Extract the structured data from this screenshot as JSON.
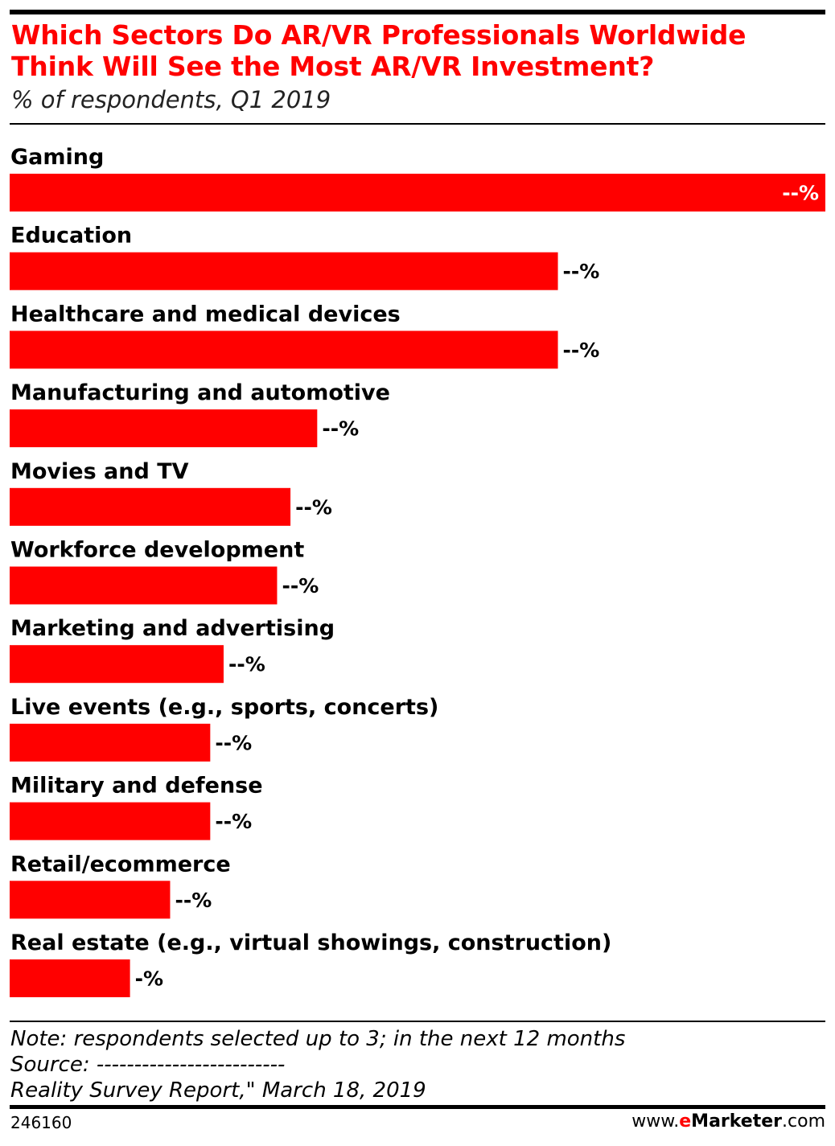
{
  "header": {
    "title": "Which Sectors Do AR/VR Professionals Worldwide Think Will See the Most AR/VR Investment?",
    "subtitle": "% of respondents, Q1 2019"
  },
  "chart_data": {
    "type": "bar",
    "orientation": "horizontal",
    "title": "Which Sectors Do AR/VR Professionals Worldwide Think Will See the Most AR/VR Investment?",
    "subtitle": "% of respondents, Q1 2019",
    "categories": [
      "Gaming",
      "Education",
      "Healthcare and medical devices",
      "Manufacturing and automotive",
      "Movies and TV",
      "Workforce development",
      "Marketing and advertising",
      "Live events (e.g., sports, concerts)",
      "Military and defense",
      "Retail/ecommerce",
      "Real estate (e.g., virtual showings, construction)"
    ],
    "values": [
      61,
      41,
      41,
      23,
      21,
      20,
      16,
      15,
      15,
      12,
      9
    ],
    "value_labels": [
      "--%",
      "--%",
      "--%",
      "--%",
      "--%",
      "--%",
      "--%",
      "--%",
      "--%",
      "--%",
      "-%"
    ],
    "xlim": [
      0,
      61
    ],
    "grid": false,
    "legend": "none",
    "bar_color": "#ff0000"
  },
  "footer": {
    "note": "Note: respondents selected up to 3; in the next 12 months",
    "source": "Source: -------------------------",
    "source_cont": "Reality Survey Report,\" March 18, 2019",
    "chart_id": "246160",
    "brand_prefix": "www.",
    "brand_e": "e",
    "brand_name": "Marketer",
    "brand_suffix": ".com"
  }
}
